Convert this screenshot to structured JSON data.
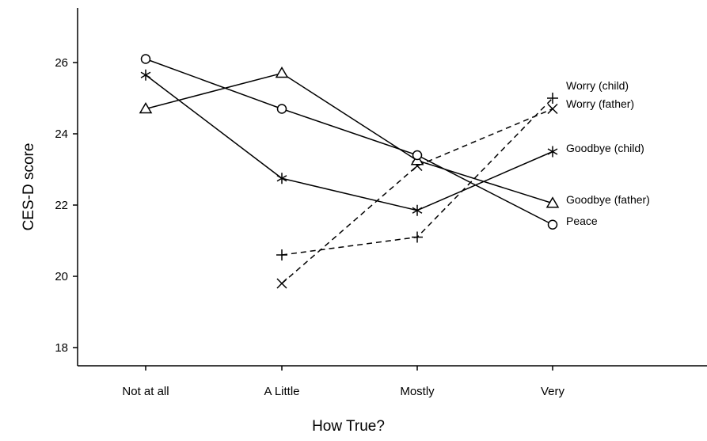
{
  "chart_data": {
    "type": "line",
    "xlabel": "How True?",
    "ylabel": "CES-D score",
    "categories": [
      "Not at all",
      "A Little",
      "Mostly",
      "Very"
    ],
    "ylim": [
      17.6,
      27.4
    ],
    "yticks": [
      18,
      20,
      22,
      24,
      26
    ],
    "grid": false,
    "legend": "direct labels at right end of each line",
    "series": [
      {
        "name": "Worry (child)",
        "marker": "plus",
        "dash": true,
        "values": [
          null,
          20.6,
          21.1,
          25.0
        ]
      },
      {
        "name": "Worry (father)",
        "marker": "x",
        "dash": true,
        "values": [
          null,
          19.8,
          23.1,
          24.7
        ]
      },
      {
        "name": "Goodbye (child)",
        "marker": "asterisk",
        "dash": false,
        "values": [
          25.65,
          22.75,
          21.85,
          23.5
        ]
      },
      {
        "name": "Goodbye (father)",
        "marker": "triangle",
        "dash": false,
        "values": [
          24.7,
          25.7,
          23.25,
          22.05
        ]
      },
      {
        "name": "Peace",
        "marker": "circle",
        "dash": false,
        "values": [
          26.1,
          24.7,
          23.4,
          21.45
        ]
      }
    ]
  }
}
